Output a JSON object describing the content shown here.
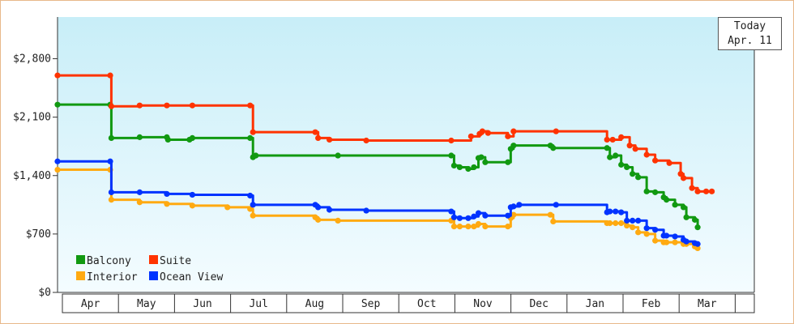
{
  "today": {
    "label": "Today",
    "date": "Apr. 11"
  },
  "chart_data": {
    "type": "line",
    "title": "",
    "xlabel": "",
    "ylabel": "",
    "ylim": [
      0,
      3300
    ],
    "y_ticks": [
      0,
      700,
      1400,
      2100,
      2800
    ],
    "y_tick_labels": [
      "$0",
      "$700",
      "$1,400",
      "$2,100",
      "$2,800"
    ],
    "x_range": [
      0,
      12.3
    ],
    "x_ticks": [
      "Apr",
      "May",
      "Jun",
      "Jul",
      "Aug",
      "Sep",
      "Oct",
      "Nov",
      "Dec",
      "Jan",
      "Feb",
      "Mar"
    ],
    "legend_position": "bottom-left",
    "grid": false,
    "series": [
      {
        "name": "Balcony",
        "color": "#119911",
        "x": [
          0.0,
          0.93,
          0.95,
          1.45,
          1.93,
          1.95,
          2.33,
          2.38,
          3.4,
          3.45,
          3.5,
          4.95,
          6.95,
          7.0,
          7.1,
          7.25,
          7.35,
          7.43,
          7.48,
          7.55,
          7.95,
          8.0,
          8.05,
          8.7,
          8.75,
          9.7,
          9.75,
          9.85,
          9.95,
          10.05,
          10.15,
          10.25,
          10.4,
          10.55,
          10.7,
          10.75,
          10.9,
          11.05,
          11.1,
          11.25,
          11.3
        ],
        "y": [
          2250,
          2250,
          1850,
          1860,
          1860,
          1830,
          1830,
          1850,
          1850,
          1620,
          1640,
          1640,
          1640,
          1520,
          1500,
          1480,
          1500,
          1610,
          1620,
          1560,
          1560,
          1720,
          1760,
          1760,
          1730,
          1730,
          1620,
          1640,
          1530,
          1500,
          1420,
          1380,
          1210,
          1200,
          1140,
          1110,
          1050,
          1020,
          900,
          870,
          780
        ]
      },
      {
        "name": "Suite",
        "color": "#ff3300",
        "x": [
          0.0,
          0.93,
          0.95,
          1.45,
          1.93,
          2.38,
          3.4,
          3.45,
          4.55,
          4.6,
          4.8,
          5.45,
          6.95,
          7.3,
          7.45,
          7.5,
          7.6,
          7.95,
          8.05,
          8.8,
          9.7,
          9.8,
          9.95,
          10.1,
          10.2,
          10.4,
          10.55,
          10.8,
          11.0,
          11.05,
          11.2,
          11.3,
          11.45,
          11.55
        ],
        "y": [
          2600,
          2600,
          2230,
          2240,
          2240,
          2240,
          2240,
          1920,
          1920,
          1850,
          1830,
          1820,
          1820,
          1870,
          1900,
          1930,
          1910,
          1870,
          1930,
          1930,
          1830,
          1830,
          1860,
          1760,
          1720,
          1650,
          1580,
          1550,
          1420,
          1370,
          1250,
          1210,
          1210,
          1210
        ]
      },
      {
        "name": "Interior",
        "color": "#ffaa11",
        "x": [
          0.0,
          0.93,
          0.95,
          1.45,
          1.93,
          2.38,
          3.0,
          3.4,
          3.45,
          4.55,
          4.6,
          4.95,
          6.95,
          7.0,
          7.1,
          7.25,
          7.35,
          7.43,
          7.55,
          7.95,
          8.0,
          8.05,
          8.7,
          8.75,
          9.7,
          9.75,
          9.85,
          9.95,
          10.05,
          10.15,
          10.25,
          10.4,
          10.55,
          10.7,
          10.75,
          10.9,
          11.05,
          11.1,
          11.25,
          11.3
        ],
        "y": [
          1470,
          1470,
          1110,
          1080,
          1060,
          1040,
          1020,
          1000,
          920,
          900,
          870,
          860,
          860,
          790,
          790,
          790,
          790,
          820,
          790,
          790,
          890,
          930,
          930,
          850,
          830,
          830,
          830,
          830,
          800,
          780,
          720,
          700,
          620,
          600,
          600,
          600,
          580,
          580,
          550,
          530
        ]
      },
      {
        "name": "Ocean View",
        "color": "#0033ff",
        "x": [
          0.0,
          0.93,
          0.95,
          1.45,
          1.93,
          2.38,
          3.4,
          3.45,
          4.55,
          4.6,
          4.8,
          5.45,
          6.95,
          7.0,
          7.1,
          7.25,
          7.35,
          7.43,
          7.55,
          7.95,
          8.0,
          8.05,
          8.15,
          8.8,
          9.7,
          9.75,
          9.85,
          9.95,
          10.05,
          10.15,
          10.25,
          10.4,
          10.55,
          10.7,
          10.75,
          10.9,
          11.05,
          11.1,
          11.25,
          11.3
        ],
        "y": [
          1570,
          1570,
          1200,
          1200,
          1180,
          1170,
          1160,
          1050,
          1050,
          1020,
          990,
          980,
          970,
          900,
          890,
          890,
          910,
          950,
          920,
          920,
          1020,
          1030,
          1050,
          1050,
          960,
          970,
          970,
          960,
          860,
          860,
          860,
          770,
          750,
          680,
          680,
          670,
          630,
          610,
          590,
          580
        ]
      }
    ]
  }
}
